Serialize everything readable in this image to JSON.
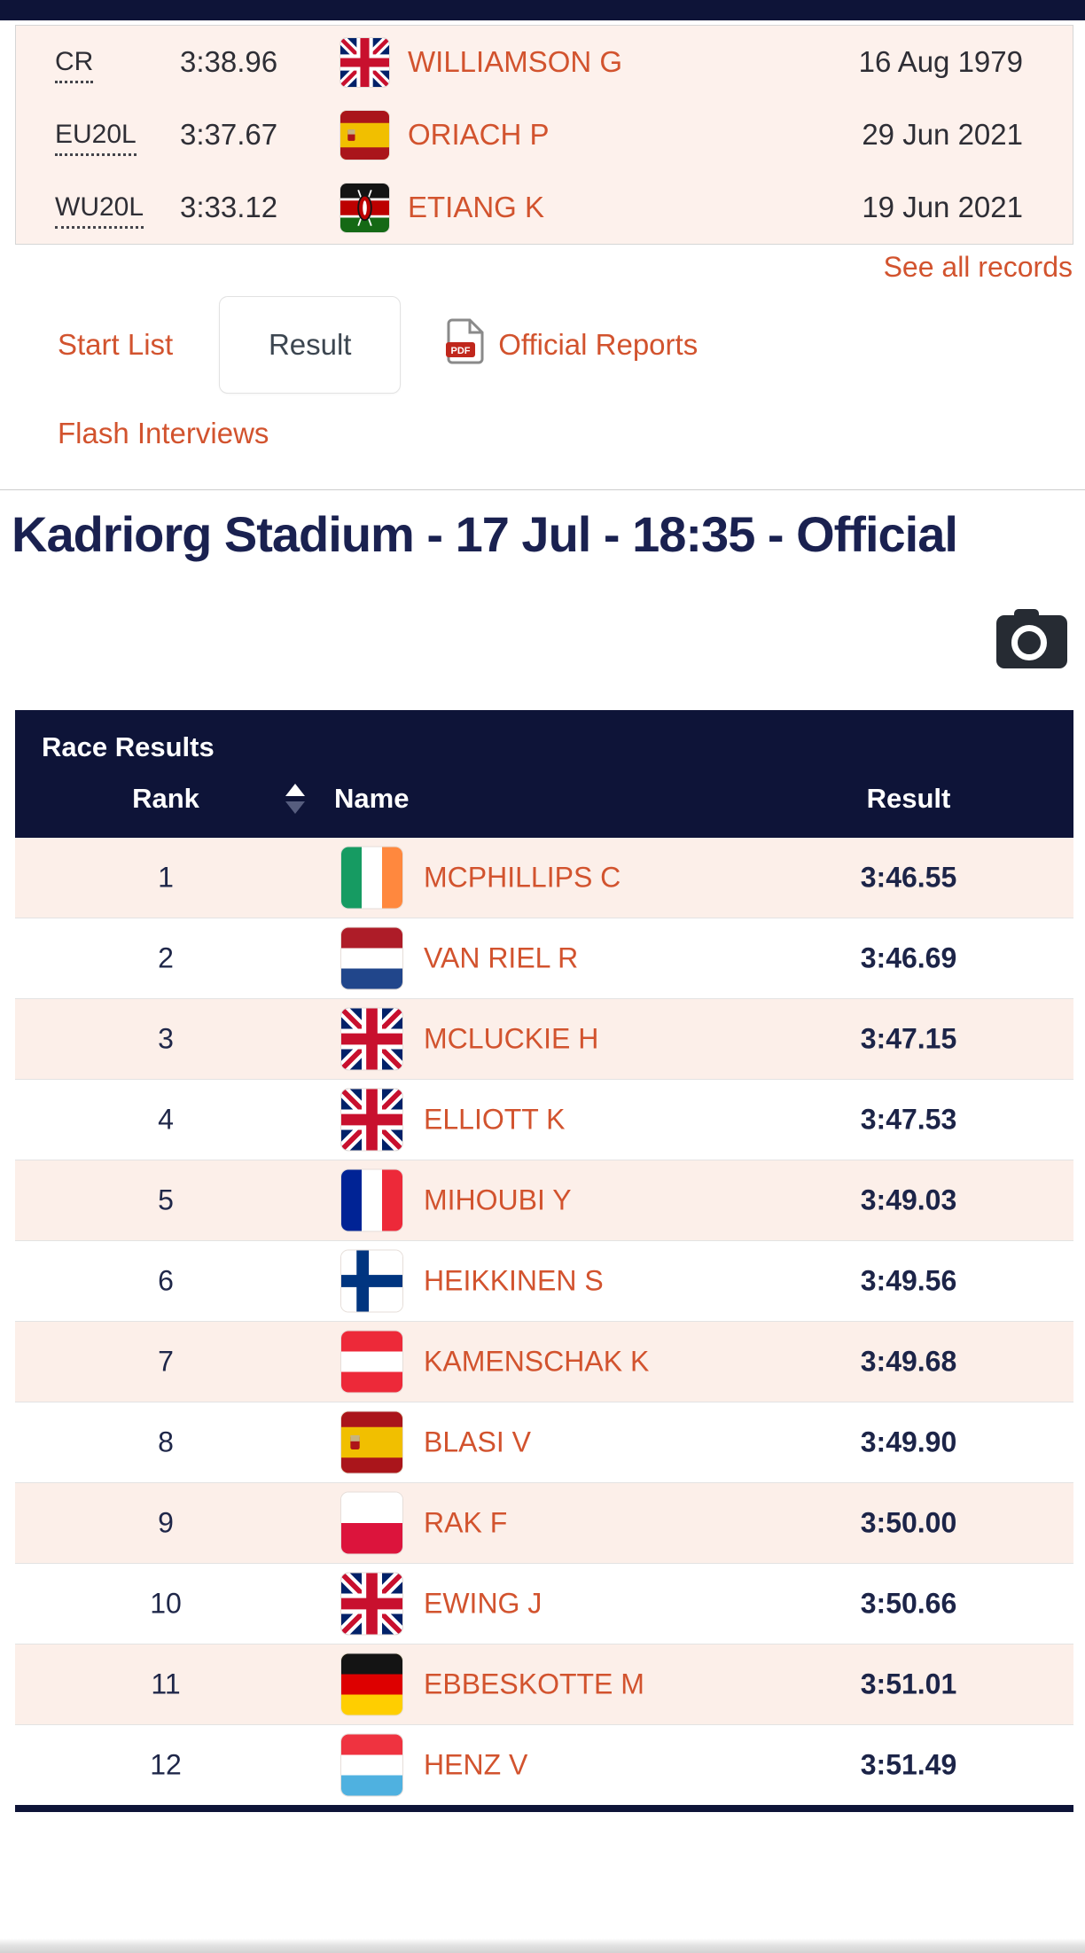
{
  "records": {
    "rows": [
      {
        "label": "CR",
        "mark": "3:38.96",
        "flag": "GBR",
        "athlete": "WILLIAMSON G",
        "date": "16 Aug 1979"
      },
      {
        "label": "EU20L",
        "mark": "3:37.67",
        "flag": "ESP",
        "athlete": "ORIACH P",
        "date": "29 Jun 2021"
      },
      {
        "label": "WU20L",
        "mark": "3:33.12",
        "flag": "KEN",
        "athlete": "ETIANG K",
        "date": "19 Jun 2021"
      }
    ],
    "see_all_label": "See all records"
  },
  "tabs": {
    "start_list": "Start List",
    "result": "Result",
    "official_reports": "Official Reports",
    "flash_interviews": "Flash Interviews",
    "active_tab": "Result"
  },
  "heading": {
    "title": "Kadriorg Stadium - 17 Jul - 18:35 - Official"
  },
  "results_table": {
    "panel_title": "Race Results",
    "columns": {
      "rank": "Rank",
      "name": "Name",
      "result": "Result"
    },
    "rows": [
      {
        "rank": "1",
        "flag": "IRL",
        "name": "MCPHILLIPS C",
        "result": "3:46.55"
      },
      {
        "rank": "2",
        "flag": "NED",
        "name": "VAN RIEL R",
        "result": "3:46.69"
      },
      {
        "rank": "3",
        "flag": "GBR",
        "name": "MCLUCKIE H",
        "result": "3:47.15"
      },
      {
        "rank": "4",
        "flag": "GBR",
        "name": "ELLIOTT K",
        "result": "3:47.53"
      },
      {
        "rank": "5",
        "flag": "FRA",
        "name": "MIHOUBI Y",
        "result": "3:49.03"
      },
      {
        "rank": "6",
        "flag": "FIN",
        "name": "HEIKKINEN S",
        "result": "3:49.56"
      },
      {
        "rank": "7",
        "flag": "AUT",
        "name": "KAMENSCHAK K",
        "result": "3:49.68"
      },
      {
        "rank": "8",
        "flag": "ESP",
        "name": "BLASI V",
        "result": "3:49.90"
      },
      {
        "rank": "9",
        "flag": "POL",
        "name": "RAK F",
        "result": "3:50.00"
      },
      {
        "rank": "10",
        "flag": "GBR",
        "name": "EWING J",
        "result": "3:50.66"
      },
      {
        "rank": "11",
        "flag": "GER",
        "name": "EBBESKOTTE M",
        "result": "3:51.01"
      },
      {
        "rank": "12",
        "flag": "LUX",
        "name": "HENZ V",
        "result": "3:51.49"
      }
    ]
  },
  "icons": {
    "pdf": "pdf-icon",
    "camera": "camera-icon",
    "sort": "sort-icon"
  },
  "colors": {
    "navy_bar": "#0e1438",
    "accent_orange": "#d2532e",
    "panel_pink": "#fdf1ec",
    "row_pink": "#fcefe9",
    "heading_navy": "#1a2150",
    "result_navy": "#1c2448"
  }
}
